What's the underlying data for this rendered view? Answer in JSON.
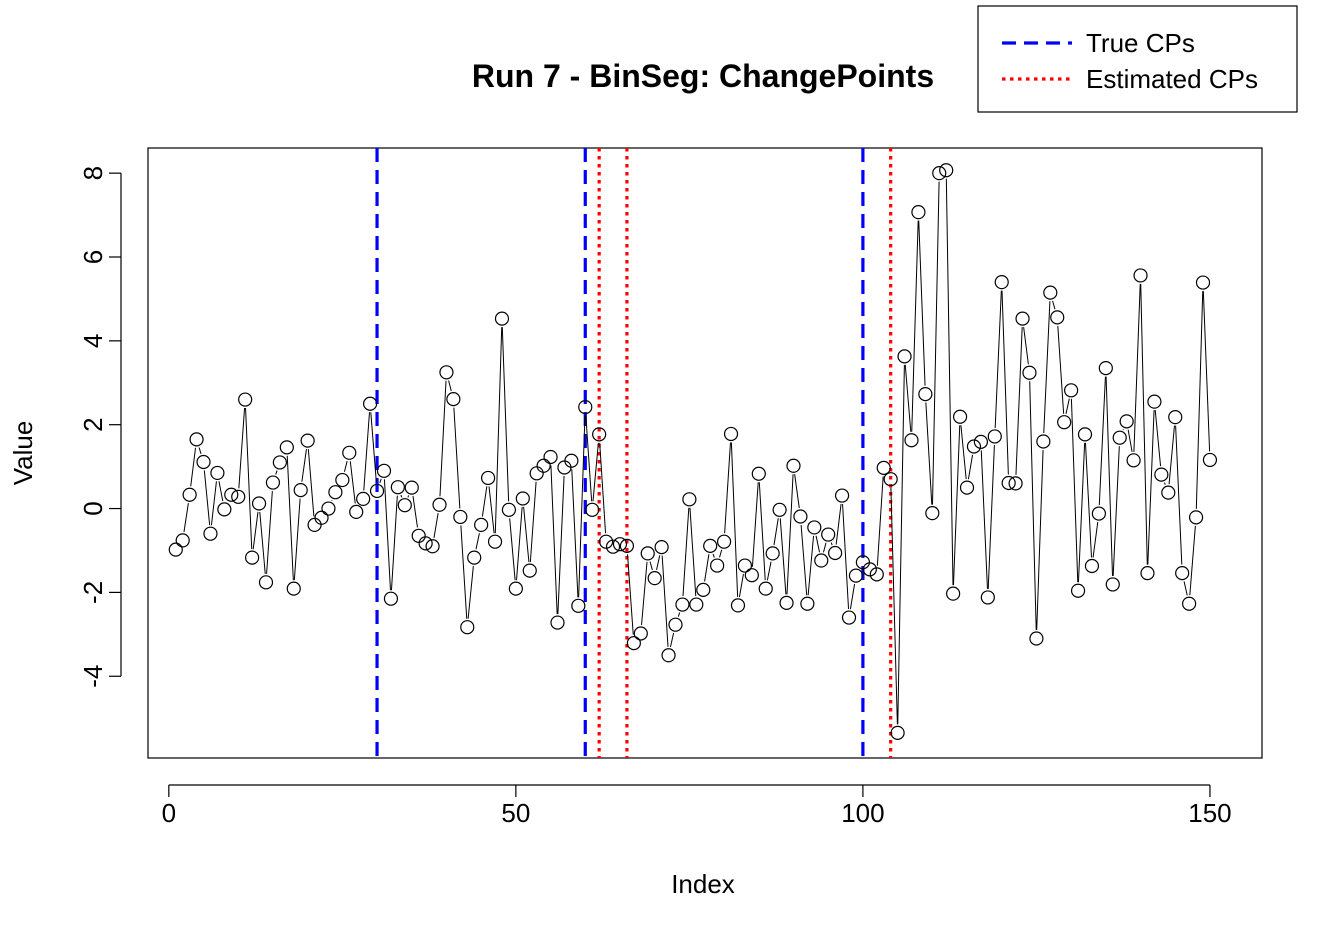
{
  "chart_data": {
    "type": "line",
    "title": "Run 7 - BinSeg: ChangePoints",
    "xlabel": "Index",
    "ylabel": "Value",
    "xlim": [
      -3,
      157.5
    ],
    "ylim": [
      -5.95,
      8.6
    ],
    "x_ticks": [
      0,
      50,
      100,
      150
    ],
    "y_ticks": [
      -4,
      -2,
      0,
      2,
      4,
      6,
      8
    ],
    "x_tick_labels": [
      "0",
      "50",
      "100",
      "150"
    ],
    "y_tick_labels": [
      "-4",
      "-2",
      "0",
      "2",
      "4",
      "6",
      "8"
    ],
    "legend": {
      "position": "top-right",
      "entries": [
        {
          "label": "True CPs",
          "color": "#0000ff",
          "style": "dashed"
        },
        {
          "label": "Estimated CPs",
          "color": "#ff0000",
          "style": "dotted"
        }
      ]
    },
    "true_cps": [
      30,
      60,
      100
    ],
    "estimated_cps": [
      62,
      66,
      104
    ],
    "series": [
      {
        "color": "#000000",
        "marker": "open-circle",
        "x": [
          1,
          2,
          3,
          4,
          5,
          6,
          7,
          8,
          9,
          10,
          11,
          12,
          13,
          14,
          15,
          16,
          17,
          18,
          19,
          20,
          21,
          22,
          23,
          24,
          25,
          26,
          27,
          28,
          29,
          30,
          31,
          32,
          33,
          34,
          35,
          36,
          37,
          38,
          39,
          40,
          41,
          42,
          43,
          44,
          45,
          46,
          47,
          48,
          49,
          50,
          51,
          52,
          53,
          54,
          55,
          56,
          57,
          58,
          59,
          60,
          61,
          62,
          63,
          64,
          65,
          66,
          67,
          68,
          69,
          70,
          71,
          72,
          73,
          74,
          75,
          76,
          77,
          78,
          79,
          80,
          81,
          82,
          83,
          84,
          85,
          86,
          87,
          88,
          89,
          90,
          91,
          92,
          93,
          94,
          95,
          96,
          97,
          98,
          99,
          100,
          101,
          102,
          103,
          104,
          105,
          106,
          107,
          108,
          109,
          110,
          111,
          112,
          113,
          114,
          115,
          116,
          117,
          118,
          119,
          120,
          121,
          122,
          123,
          124,
          125,
          126,
          127,
          128,
          129,
          130,
          131,
          132,
          133,
          134,
          135,
          136,
          137,
          138,
          139,
          140,
          141,
          142,
          143,
          144,
          145,
          146,
          147,
          148,
          149,
          150
        ],
        "values": [
          -0.98,
          -0.76,
          0.33,
          1.65,
          1.11,
          -0.6,
          0.85,
          -0.02,
          0.33,
          0.28,
          2.6,
          -1.17,
          0.12,
          -1.76,
          0.62,
          1.1,
          1.46,
          -1.91,
          0.44,
          1.62,
          -0.39,
          -0.22,
          0.0,
          0.39,
          0.68,
          1.33,
          -0.08,
          0.23,
          2.5,
          0.42,
          0.9,
          -2.15,
          0.51,
          0.08,
          0.5,
          -0.65,
          -0.83,
          -0.9,
          0.09,
          3.25,
          2.61,
          -0.2,
          -2.83,
          -1.17,
          -0.39,
          0.73,
          -0.79,
          4.53,
          -0.03,
          -1.91,
          0.24,
          -1.48,
          0.84,
          1.02,
          1.23,
          -2.72,
          0.98,
          1.14,
          -2.32,
          2.42,
          -0.03,
          1.77,
          -0.79,
          -0.91,
          -0.85,
          -0.89,
          -3.21,
          -2.98,
          -1.07,
          -1.66,
          -0.92,
          -3.5,
          -2.77,
          -2.29,
          0.22,
          -2.29,
          -1.94,
          -0.89,
          -1.36,
          -0.79,
          1.78,
          -2.31,
          -1.36,
          -1.59,
          0.83,
          -1.91,
          -1.07,
          -0.03,
          -2.25,
          1.02,
          -0.19,
          -2.27,
          -0.45,
          -1.24,
          -0.62,
          -1.06,
          0.31,
          -2.6,
          -1.6,
          -1.28,
          -1.45,
          -1.57,
          0.97,
          0.7,
          -5.35,
          3.63,
          1.63,
          7.07,
          2.73,
          -0.11,
          8.0,
          8.07,
          -2.03,
          2.19,
          0.5,
          1.48,
          1.59,
          -2.12,
          1.72,
          5.4,
          0.61,
          0.6,
          4.53,
          3.24,
          -3.1,
          1.6,
          5.15,
          4.56,
          2.06,
          2.82,
          -1.96,
          1.77,
          -1.37,
          -0.12,
          3.35,
          -1.81,
          1.69,
          2.08,
          1.15,
          5.56,
          -1.54,
          2.55,
          0.81,
          0.38,
          2.18,
          -1.54,
          -2.27,
          -0.21,
          5.39,
          1.16
        ]
      }
    ]
  }
}
